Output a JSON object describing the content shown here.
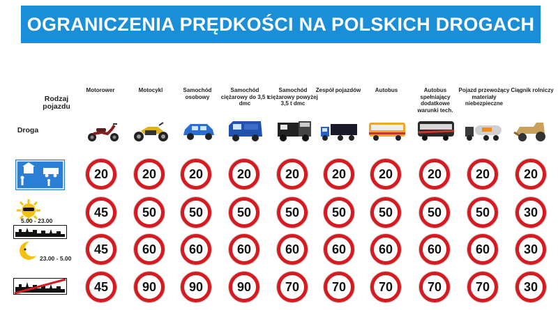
{
  "title": "OGRANICZENIA PRĘDKOŚCI NA POLSKICH DROGACH",
  "header": {
    "vehicle_label": "Rodzaj pojazdu",
    "road_label": "Droga"
  },
  "columns": [
    {
      "label": "Motorower",
      "icon": "moped-icon"
    },
    {
      "label": "Motocykl",
      "icon": "motorcycle-icon"
    },
    {
      "label": "Samochód osobowy",
      "icon": "car-icon"
    },
    {
      "label": "Samochód ciężarowy do 3,5 t dmc",
      "icon": "van-icon"
    },
    {
      "label": "Samochód ciężarowy powyżej 3,5 t dmc",
      "icon": "truck-icon"
    },
    {
      "label": "Zespół pojazdów",
      "icon": "truck-trailer-icon"
    },
    {
      "label": "Autobus",
      "icon": "bus-icon"
    },
    {
      "label": "Autobus spełniający dodatkowe warunki tech.",
      "icon": "coach-icon"
    },
    {
      "label": "Pojazd przewożący materiały niebezpieczne",
      "icon": "tanker-icon"
    },
    {
      "label": "Ciągnik rolniczy",
      "icon": "tractor-icon"
    }
  ],
  "rows": [
    {
      "zone": "residential-zone-sign-icon",
      "time": "",
      "limits": [
        "20",
        "20",
        "20",
        "20",
        "20",
        "20",
        "20",
        "20",
        "20",
        "20"
      ]
    },
    {
      "zone": "built-up-area-day-icon",
      "time": "5.00 - 23.00",
      "limits": [
        "45",
        "50",
        "50",
        "50",
        "50",
        "50",
        "50",
        "50",
        "50",
        "30"
      ]
    },
    {
      "zone": "built-up-area-night-icon",
      "time": "23.00 - 5.00",
      "limits": [
        "45",
        "60",
        "60",
        "60",
        "60",
        "60",
        "60",
        "60",
        "60",
        "30"
      ]
    },
    {
      "zone": "end-built-up-area-icon",
      "time": "",
      "limits": [
        "45",
        "90",
        "90",
        "90",
        "70",
        "70",
        "70",
        "70",
        "70",
        "30"
      ]
    }
  ],
  "colors": {
    "banner": "#1a8fd8",
    "sign_border": "#d71920",
    "zone_sign": "#2a7fd4"
  }
}
